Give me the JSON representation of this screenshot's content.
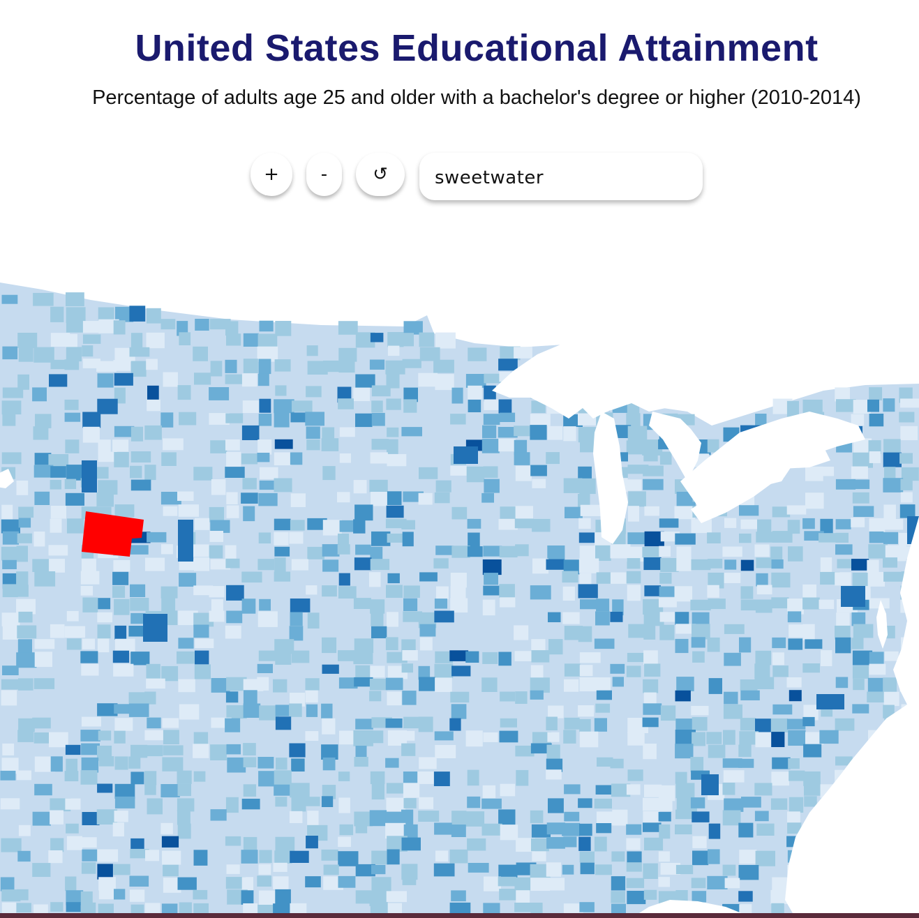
{
  "header": {
    "title": "United States Educational Attainment",
    "subtitle": "Percentage of adults age 25 and older with a bachelor's degree or higher (2010-2014)"
  },
  "controls": {
    "zoom_in_label": "+",
    "zoom_out_label": "-",
    "reset_label": "↺",
    "search_value": "sweetwater",
    "search_placeholder": ""
  },
  "map": {
    "highlight_color": "#ff0000",
    "land_color": "#c6dbef",
    "water_color": "#ffffff",
    "color_scale": [
      "#deebf7",
      "#c6dbef",
      "#9ecae1",
      "#6baed6",
      "#4292c6",
      "#2171b5",
      "#08519c"
    ]
  }
}
